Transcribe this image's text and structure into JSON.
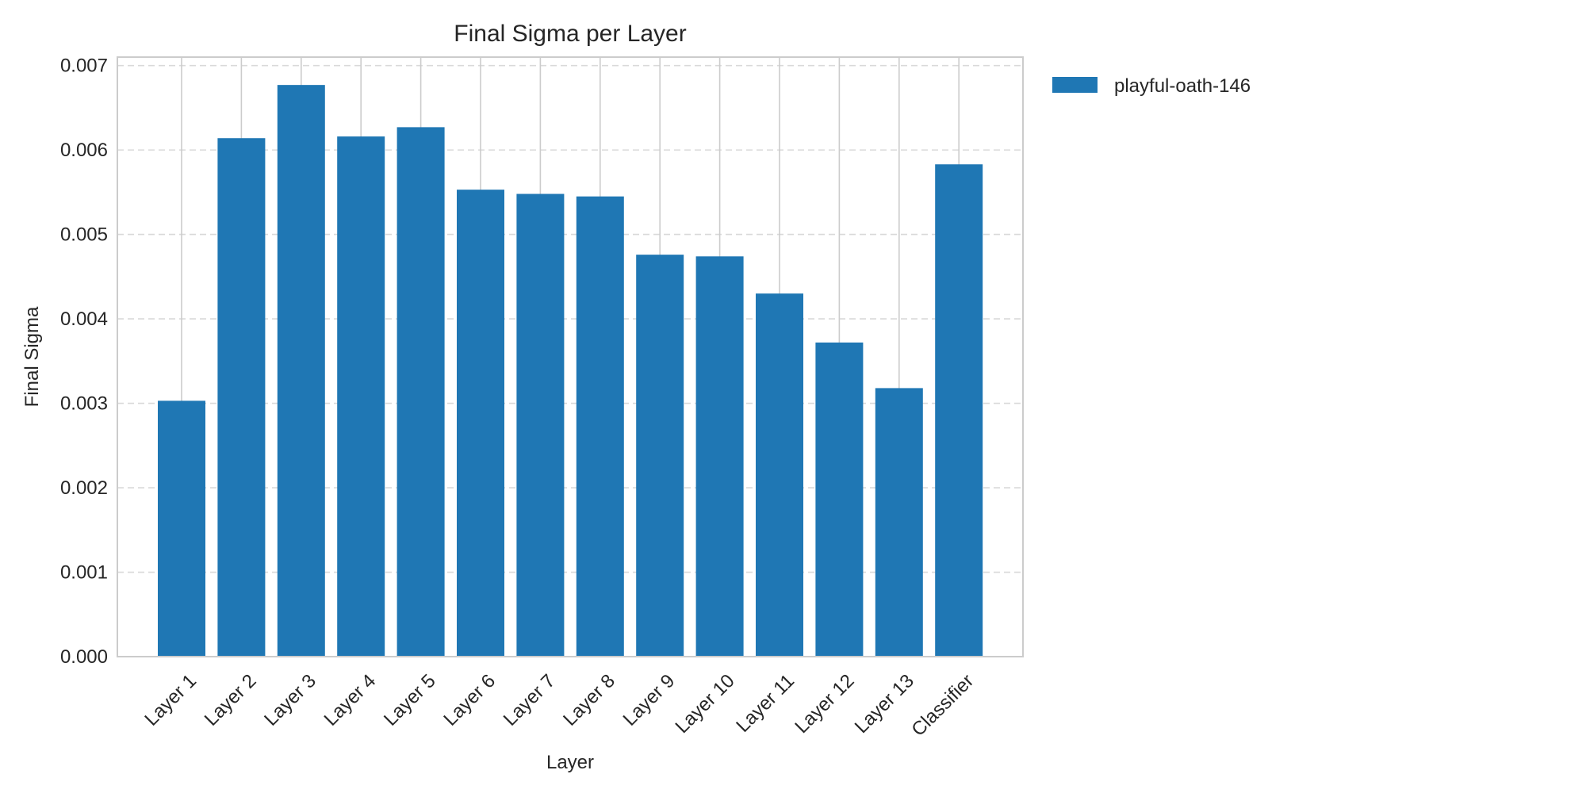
{
  "chart_data": {
    "type": "bar",
    "title": "Final Sigma per Layer",
    "xlabel": "Layer",
    "ylabel": "Final Sigma",
    "categories": [
      "Layer 1",
      "Layer 2",
      "Layer 3",
      "Layer 4",
      "Layer 5",
      "Layer 6",
      "Layer 7",
      "Layer 8",
      "Layer 9",
      "Layer 10",
      "Layer 11",
      "Layer 12",
      "Layer 13",
      "Classifier"
    ],
    "series": [
      {
        "name": "playful-oath-146",
        "color": "#1f77b4",
        "values": [
          0.00303,
          0.00614,
          0.00677,
          0.00616,
          0.00627,
          0.00553,
          0.00548,
          0.00545,
          0.00476,
          0.00474,
          0.0043,
          0.00372,
          0.00318,
          0.00583
        ]
      }
    ],
    "ylim": [
      0,
      0.0071
    ],
    "yticks": [
      "0.000",
      "0.001",
      "0.002",
      "0.003",
      "0.004",
      "0.005",
      "0.006",
      "0.007"
    ],
    "grid": true,
    "legend_position": "outside-top-right"
  }
}
